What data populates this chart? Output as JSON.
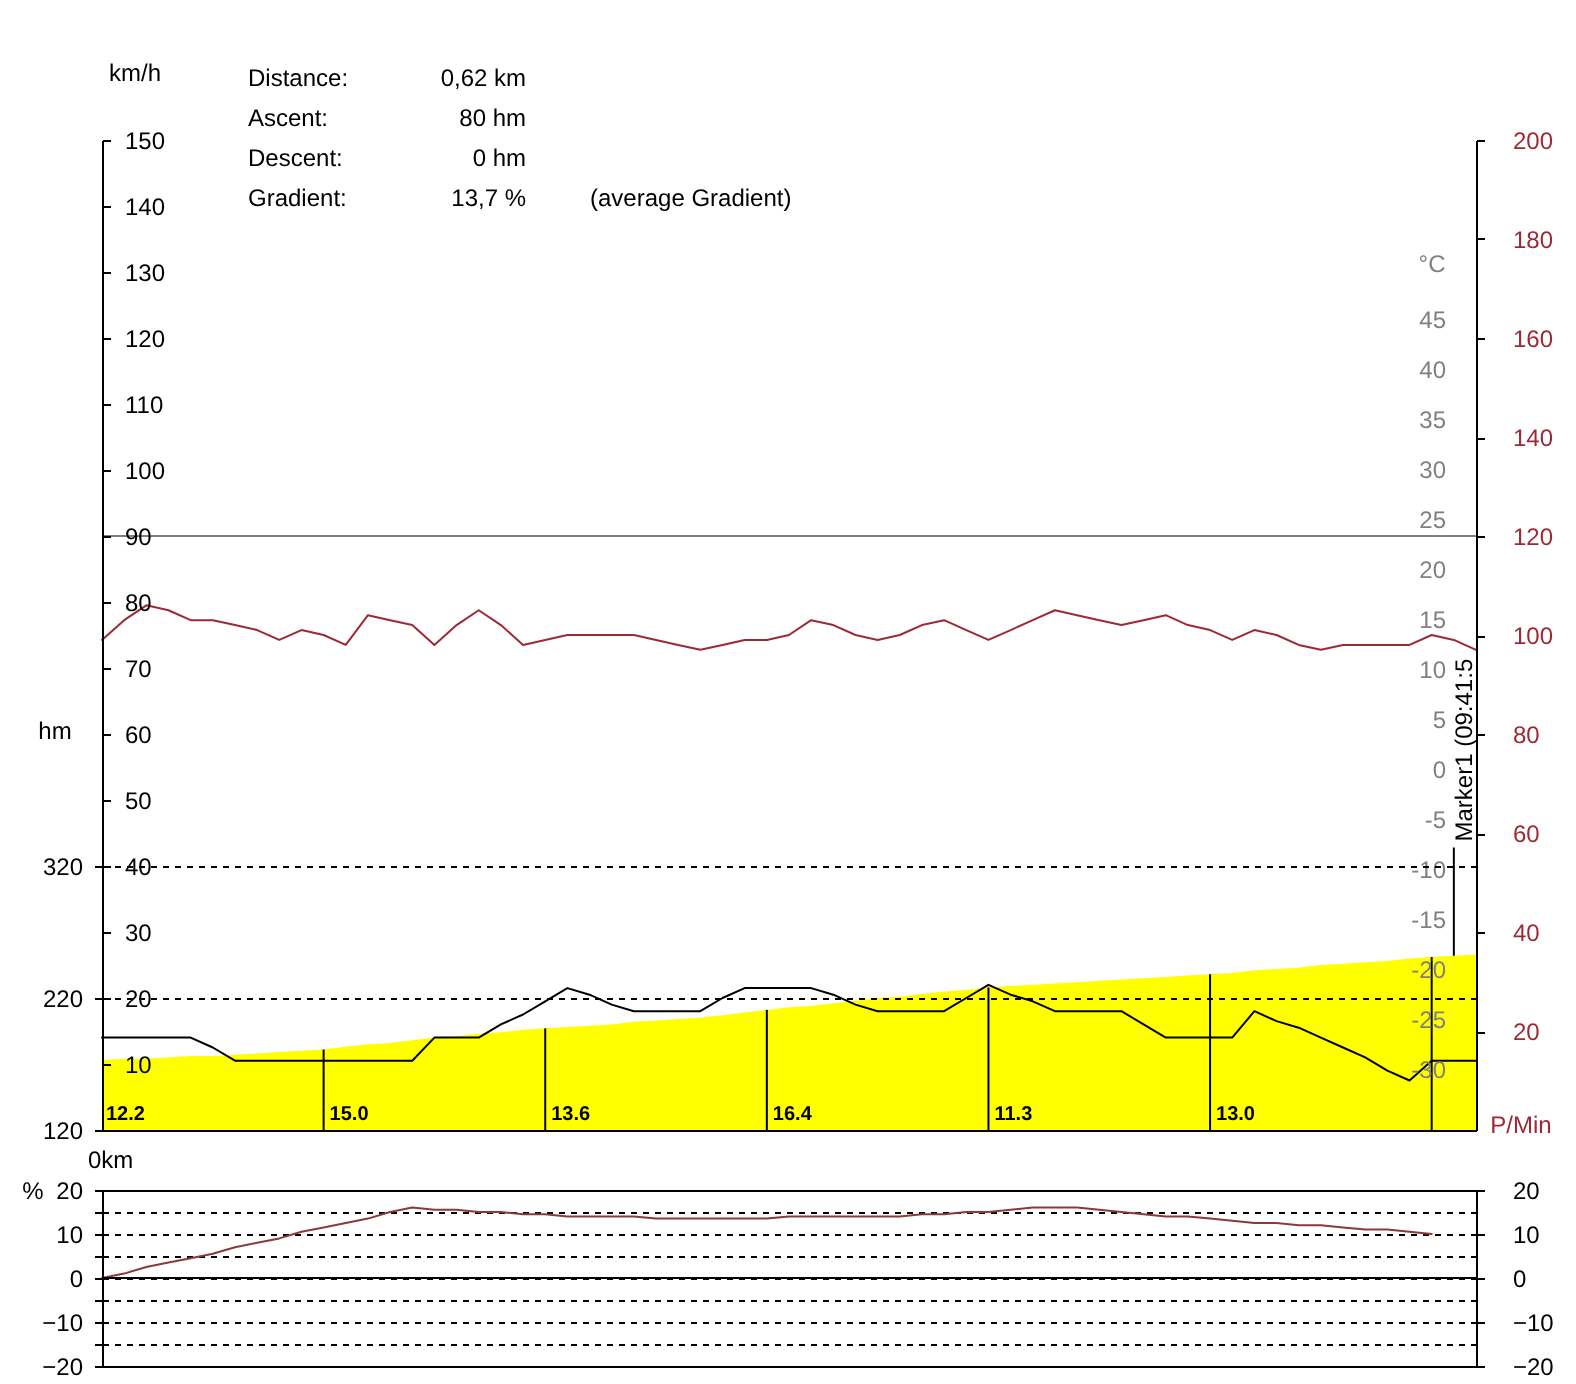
{
  "chart_data": [
    {
      "type": "line",
      "ylabel": "hm",
      "y2label": "P/Min",
      "y3label": "km/h",
      "categories": [
        null,
        null,
        null,
        null,
        null,
        null,
        null,
        null,
        null,
        null,
        null,
        null,
        null,
        null,
        null,
        null,
        null,
        null,
        null,
        null,
        null,
        null,
        null,
        null,
        null,
        null,
        null,
        null,
        null,
        null,
        null,
        null,
        null,
        null,
        null,
        null,
        null,
        null,
        null,
        null,
        null,
        null,
        null,
        null,
        null,
        null,
        null,
        null,
        null,
        null,
        null,
        null,
        null,
        null,
        null,
        null,
        null,
        null,
        null,
        null,
        null,
        null,
        null
      ],
      "ylim": [
        120,
        870
      ],
      "yticks": [
        120,
        220,
        320
      ],
      "y2lim": [
        0,
        200
      ],
      "y2ticks": [
        20,
        40,
        60,
        80,
        100,
        120,
        140,
        160,
        180,
        200
      ],
      "y3lim": [
        0,
        150
      ],
      "y3ticks": [
        10,
        20,
        30,
        40,
        50,
        60,
        70,
        80,
        90,
        100,
        110,
        120,
        130,
        140,
        150
      ],
      "grid": "y",
      "series": [
        {
          "type": "area",
          "color": "#ffff00",
          "values": [
            173,
            174,
            174,
            175,
            176,
            176,
            177,
            178,
            179,
            180,
            181,
            183,
            185,
            186,
            188,
            190,
            191,
            193,
            194,
            196,
            197,
            198,
            199,
            200,
            202,
            203,
            204,
            205,
            207,
            209,
            211,
            213,
            214,
            216,
            218,
            220,
            221,
            223,
            225,
            226,
            228,
            229,
            230,
            231,
            232,
            233,
            234,
            235,
            236,
            237,
            238,
            239,
            241,
            242,
            243,
            245,
            246,
            247,
            248,
            250,
            251,
            252,
            253
          ]
        },
        {
          "type": "bar",
          "color": "#000000",
          "values": [
            null,
            null,
            null,
            null,
            null,
            null,
            null,
            null,
            null,
            null,
            61,
            null,
            null,
            null,
            null,
            null,
            null,
            null,
            null,
            null,
            77,
            null,
            null,
            null,
            null,
            null,
            null,
            null,
            null,
            null,
            91,
            null,
            null,
            null,
            null,
            null,
            null,
            null,
            null,
            null,
            108,
            null,
            null,
            null,
            null,
            null,
            null,
            null,
            null,
            null,
            118,
            null,
            null,
            null,
            null,
            null,
            null,
            null,
            null,
            null,
            131,
            82,
            null
          ],
          "base": [
            null,
            null,
            null,
            null,
            null,
            null,
            null,
            null,
            null,
            null,
            120,
            null,
            null,
            null,
            null,
            null,
            null,
            null,
            null,
            null,
            120,
            null,
            null,
            null,
            null,
            null,
            null,
            null,
            null,
            null,
            120,
            null,
            null,
            null,
            null,
            null,
            null,
            null,
            null,
            null,
            120,
            null,
            null,
            null,
            null,
            null,
            null,
            null,
            null,
            null,
            120,
            null,
            null,
            null,
            null,
            null,
            null,
            null,
            null,
            null,
            120,
            252,
            null
          ]
        },
        {
          "type": "line",
          "axis": "y3",
          "color": "#000000",
          "values": [
            14,
            14,
            14,
            14,
            14,
            12.5,
            10.5,
            10.5,
            10.5,
            10.5,
            10.5,
            10.5,
            10.5,
            10.5,
            10.5,
            14,
            14,
            14,
            16,
            17.5,
            19.5,
            21.5,
            20.5,
            19,
            18,
            18,
            18,
            18,
            20,
            21.5,
            21.5,
            21.5,
            21.5,
            20.5,
            19,
            18,
            18,
            18,
            18,
            20,
            22,
            20.5,
            19.5,
            18,
            18,
            18,
            18,
            16,
            14,
            14,
            14,
            14,
            18,
            16.5,
            15.5,
            14,
            12.5,
            11,
            9,
            7.5,
            10.5,
            10.5,
            10.5
          ]
        },
        {
          "type": "line",
          "axis": "y2",
          "color": "#9c2a36",
          "values": [
            99,
            103,
            106,
            105,
            103,
            103,
            102,
            101,
            99,
            101,
            100,
            98,
            104,
            103,
            102,
            98,
            102,
            105,
            102,
            98,
            99,
            100,
            100,
            100,
            100,
            99,
            98,
            97,
            98,
            99,
            99,
            100,
            103,
            102,
            100,
            99,
            100,
            102,
            103,
            101,
            99,
            101,
            103,
            105,
            104,
            103,
            102,
            103,
            104,
            102,
            101,
            99,
            101,
            100,
            98,
            97,
            98,
            98,
            98,
            98,
            100,
            99,
            97
          ]
        }
      ],
      "ref_lines": [
        {
          "axis": "y2",
          "value": 120,
          "color": "#808080"
        }
      ],
      "annotations": [
        "Distance:",
        "0,62 km",
        "Ascent:",
        "80 hm",
        "Descent:",
        "0 hm",
        "Gradient:",
        "13,7 %",
        "(average Gradient)",
        "0km",
        "12.2",
        "15.0",
        "13.6",
        "16.4",
        "11.3",
        "13.0",
        "Marker1 (09:41:5",
        "°C",
        "45",
        "40",
        "35",
        "30",
        "25",
        "20",
        "15",
        "10",
        "5",
        "0",
        "-5",
        "-10",
        "-15",
        "-20",
        "-25",
        "-30"
      ]
    },
    {
      "type": "line",
      "ylabel": "%",
      "categories": [
        null,
        null,
        null,
        null,
        null,
        null,
        null,
        null,
        null,
        null,
        null,
        null,
        null,
        null,
        null,
        null,
        null,
        null,
        null,
        null,
        null,
        null,
        null,
        null,
        null,
        null,
        null,
        null,
        null,
        null,
        null,
        null,
        null,
        null,
        null,
        null,
        null,
        null,
        null,
        null,
        null,
        null,
        null,
        null,
        null,
        null,
        null,
        null,
        null,
        null,
        null,
        null,
        null,
        null,
        null,
        null,
        null,
        null,
        null,
        null,
        null,
        null,
        null
      ],
      "ylim": [
        -20,
        20
      ],
      "yticks": [
        -20,
        {
          "value": -15,
          "label": null
        },
        -10,
        {
          "value": -5,
          "label": null
        },
        0,
        {
          "value": 5,
          "label": null
        },
        10,
        {
          "value": 15,
          "label": null
        },
        20
      ],
      "y2lim": [
        -20,
        20
      ],
      "y2ticks": [
        -20,
        -10,
        0,
        10,
        20
      ],
      "grid": "y",
      "series": [
        {
          "color": "#8b3a3a",
          "values": [
            0,
            1,
            2.5,
            3.5,
            4.5,
            5.5,
            7,
            8,
            9,
            10.5,
            11.5,
            12.5,
            13.5,
            15,
            16,
            15.5,
            15.5,
            15,
            15,
            14.5,
            14.5,
            14,
            14,
            14,
            14,
            13.5,
            13.5,
            13.5,
            13.5,
            13.5,
            13.5,
            14,
            14,
            14,
            14,
            14,
            14,
            14.5,
            14.5,
            15,
            15,
            15.5,
            16,
            16,
            16,
            15.5,
            15,
            14.5,
            14,
            14,
            13.5,
            13,
            12.5,
            12.5,
            12,
            12,
            11.5,
            11,
            11,
            10.5,
            10,
            null,
            null
          ]
        }
      ]
    }
  ]
}
